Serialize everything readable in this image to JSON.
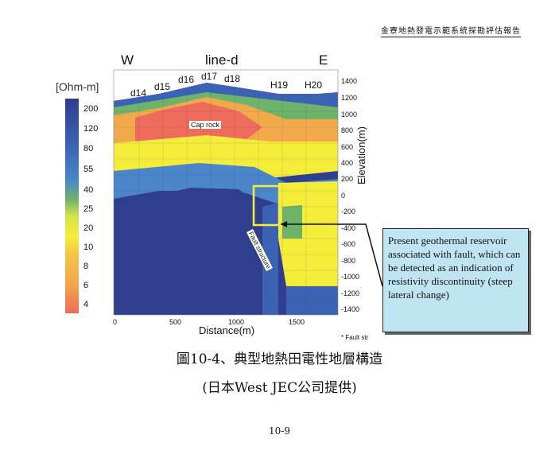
{
  "header": {
    "report_title": "金寮地熱發電示範系統探勘評估報告"
  },
  "figure": {
    "direction_west": "W",
    "direction_east": "E",
    "line_name": "line-d",
    "colorbar": {
      "unit": "[Ohm-m]",
      "ticks": [
        "200",
        "120",
        "80",
        "55",
        "40",
        "25",
        "20",
        "10",
        "8",
        "6",
        "4"
      ]
    },
    "wells": [
      "d14",
      "d15",
      "d16",
      "d17",
      "d18",
      "H19",
      "H20"
    ],
    "elevation_axis": {
      "title": "Elevation(m)",
      "ticks": [
        "1400",
        "1200",
        "1000",
        "800",
        "600",
        "400",
        "200",
        "0",
        "-200",
        "-400",
        "-600",
        "-800",
        "-1000",
        "-1200",
        "-1400"
      ]
    },
    "distance_axis": {
      "title": "Distance(m)",
      "ticks": [
        "0",
        "500",
        "1000",
        "1500"
      ]
    },
    "annotations": {
      "cap_rock": "Cap rock",
      "fault_structure": "Fault structure",
      "fault_note": "* Fault str"
    },
    "callout_text": "Present geothermal reservoir associated with fault, which can be detected as an indication of resistivity discontinuity (steep lateral change)",
    "colors": {
      "deep_blue": "#2f3f8e",
      "blue": "#3c62b4",
      "light_blue": "#4a86c9",
      "green": "#6db36a",
      "yellow": "#f4ee3a",
      "orange": "#f2a94a",
      "red": "#ef6b5b",
      "callout_bg": "#bfe4f2"
    }
  },
  "caption": {
    "line1": "圖10-4、典型地熱田電性地層構造",
    "line2": "(日本West JEC公司提供)"
  },
  "page_number": "10-9"
}
